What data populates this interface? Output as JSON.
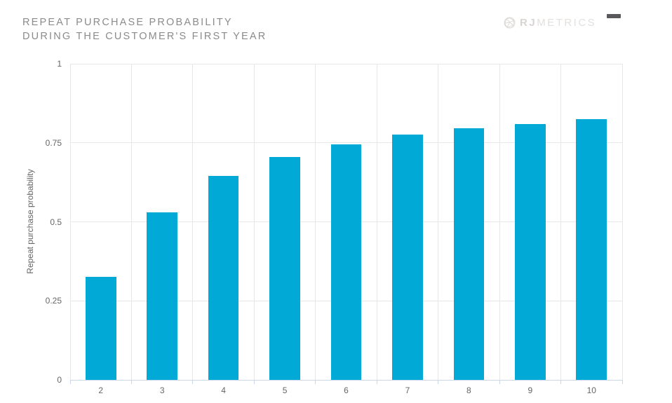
{
  "header": {
    "title_line1": "REPEAT PURCHASE PROBABILITY",
    "title_line2": "DURING THE CUSTOMER'S FIRST YEAR",
    "brand": {
      "name_bold": "RJ",
      "name_light": "METRICS"
    }
  },
  "colors": {
    "bar": "#00a9d6",
    "gridline": "#e7e7e7",
    "axis_line": "#ccd6eb",
    "tick_label": "#666666",
    "title_text": "#8b8b8b",
    "brand_text": "#e3e0de",
    "menu_icon": "#59595b",
    "background": "#ffffff"
  },
  "chart_data": {
    "type": "bar",
    "title": "Repeat purchase probability during the customer's first year",
    "categories": [
      "2",
      "3",
      "4",
      "5",
      "6",
      "7",
      "8",
      "9",
      "10"
    ],
    "values": [
      0.325,
      0.53,
      0.645,
      0.705,
      0.745,
      0.775,
      0.795,
      0.81,
      0.825
    ],
    "xlabel": "",
    "ylabel": "Repeat purchase probability",
    "ylim": [
      0,
      1
    ],
    "yticks": [
      0,
      0.25,
      0.5,
      0.75,
      1
    ],
    "ytick_labels": [
      "0",
      "0.25",
      "0.5",
      "0.75",
      "1"
    ],
    "grid": true,
    "legend": false,
    "bar_width_ratio": 0.5
  }
}
